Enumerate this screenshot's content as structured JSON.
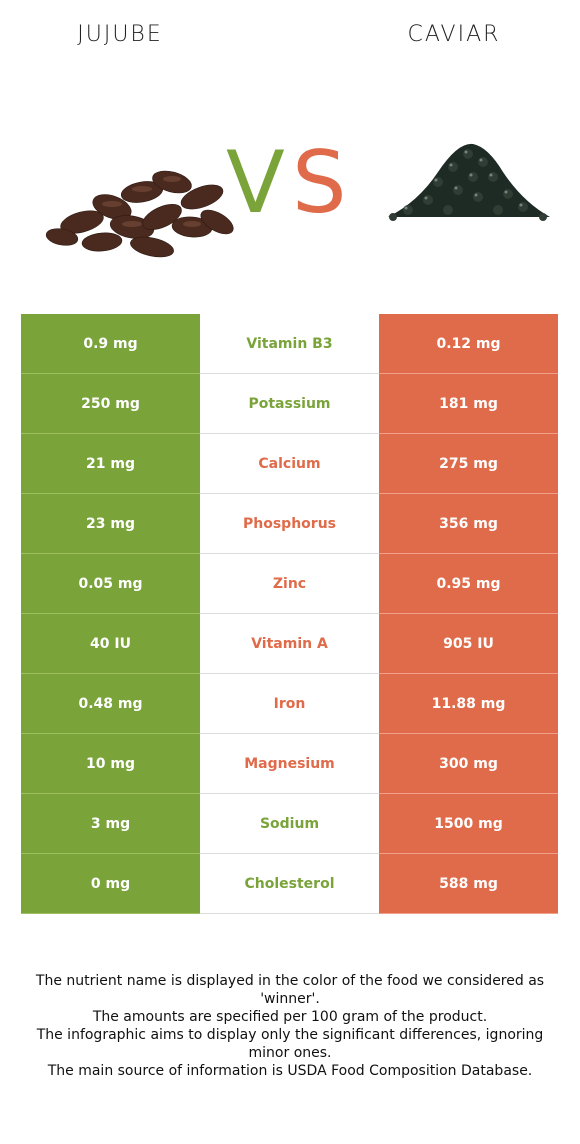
{
  "header": {
    "left_title": "JUJUBE",
    "right_title": "CAVIAR",
    "vs_v": "V",
    "vs_s": "S"
  },
  "colors": {
    "left": "#7aa33a",
    "right": "#e06b4a"
  },
  "rows": [
    {
      "left": "0.9 mg",
      "nutrient": "Vitamin B3",
      "right": "0.12 mg",
      "winner": "left"
    },
    {
      "left": "250 mg",
      "nutrient": "Potassium",
      "right": "181 mg",
      "winner": "left"
    },
    {
      "left": "21 mg",
      "nutrient": "Calcium",
      "right": "275 mg",
      "winner": "right"
    },
    {
      "left": "23 mg",
      "nutrient": "Phosphorus",
      "right": "356 mg",
      "winner": "right"
    },
    {
      "left": "0.05 mg",
      "nutrient": "Zinc",
      "right": "0.95 mg",
      "winner": "right"
    },
    {
      "left": "40 IU",
      "nutrient": "Vitamin A",
      "right": "905 IU",
      "winner": "right"
    },
    {
      "left": "0.48 mg",
      "nutrient": "Iron",
      "right": "11.88 mg",
      "winner": "right"
    },
    {
      "left": "10 mg",
      "nutrient": "Magnesium",
      "right": "300 mg",
      "winner": "right"
    },
    {
      "left": "3 mg",
      "nutrient": "Sodium",
      "right": "1500 mg",
      "winner": "left"
    },
    {
      "left": "0 mg",
      "nutrient": "Cholesterol",
      "right": "588 mg",
      "winner": "left"
    }
  ],
  "footer": {
    "line1": "The nutrient name is displayed in the color of the food we considered as 'winner'.",
    "line2": "The amounts are specified per 100 gram of the product.",
    "line3": "The infographic aims to display only the significant differences, ignoring minor ones.",
    "line4": "The main source of information is USDA Food Composition Database."
  }
}
